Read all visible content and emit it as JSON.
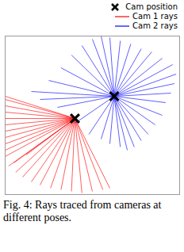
{
  "chart_data": {
    "type": "rays",
    "caption": "Fig. 4: Rays traced from cameras at different poses.",
    "xlim": [
      0,
      100
    ],
    "ylim": [
      0,
      100
    ],
    "xticks": [],
    "yticks": [],
    "tick_labels": false,
    "grid": false,
    "legend": "top",
    "series": [
      {
        "name": "Cam 1 rays",
        "type": "rays",
        "color": "#ff0000",
        "line_style": "solid",
        "origin": [
          40,
          48
        ],
        "x": [
          0,
          0,
          0,
          0,
          0,
          0,
          0,
          0,
          0,
          0,
          0,
          2,
          6,
          10,
          15,
          20,
          26,
          32,
          38,
          44,
          50,
          56,
          60,
          5,
          12
        ],
        "y": [
          62,
          60,
          56,
          52,
          48,
          44,
          40,
          36,
          32,
          28,
          24,
          18,
          14,
          11,
          8,
          6,
          4,
          3,
          2,
          1,
          2,
          3,
          4,
          20,
          25
        ]
      },
      {
        "name": "Cam 2 rays",
        "type": "rays",
        "color": "#0000ff",
        "line_style": "solid",
        "origin": [
          62.5,
          62
        ],
        "x": [
          50,
          55,
          60,
          66,
          72,
          78,
          84,
          90,
          96,
          98,
          97,
          95,
          92,
          90,
          86,
          82,
          78,
          74,
          70,
          66,
          60,
          55,
          48,
          40,
          30,
          20,
          15,
          25,
          32,
          38,
          44
        ],
        "y": [
          98,
          100,
          99,
          97,
          95,
          92,
          90,
          86,
          82,
          76,
          70,
          64,
          58,
          50,
          44,
          38,
          34,
          30,
          28,
          30,
          32,
          35,
          38,
          45,
          55,
          60,
          65,
          72,
          80,
          88,
          94
        ]
      },
      {
        "name": "Cam position",
        "type": "scatter",
        "marker": "x",
        "color": "#000000",
        "x": [
          40,
          62.5
        ],
        "y": [
          48,
          62
        ]
      }
    ]
  }
}
